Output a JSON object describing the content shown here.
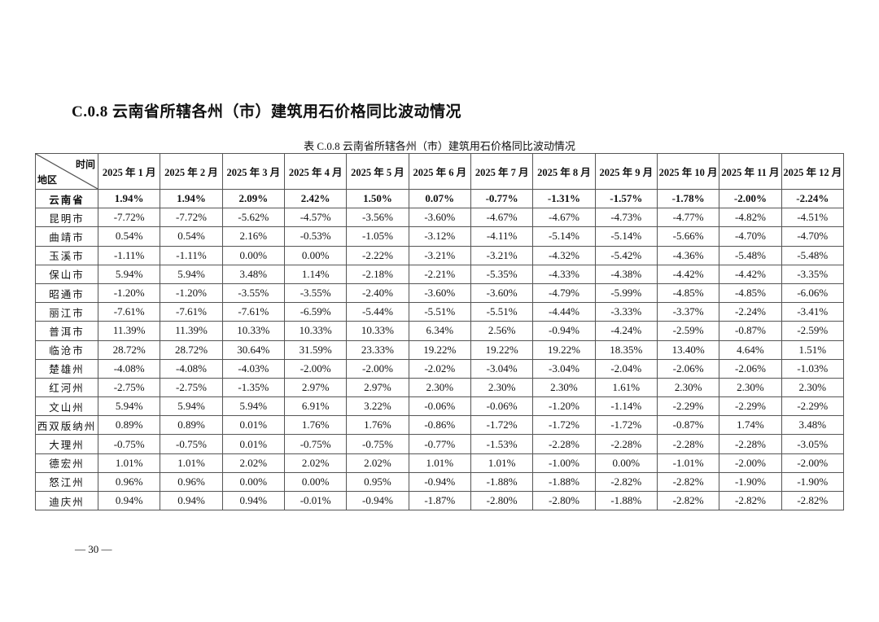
{
  "section_title": "C.0.8  云南省所辖各州（市）建筑用石价格同比波动情况",
  "caption": "表 C.0.8   云南省所辖各州（市）建筑用石价格同比波动情况",
  "table": {
    "corner_top": "时间",
    "corner_bottom": "地区",
    "columns": [
      "2025 年 1 月",
      "2025 年 2 月",
      "2025 年 3 月",
      "2025 年 4 月",
      "2025 年 5 月",
      "2025 年 6 月",
      "2025 年 7 月",
      "2025 年 8 月",
      "2025 年 9 月",
      "2025 年 10 月",
      "2025 年 11 月",
      "2025 年 12 月"
    ],
    "rows": [
      {
        "region": "云南省",
        "bold": true,
        "values": [
          "1.94%",
          "1.94%",
          "2.09%",
          "2.42%",
          "1.50%",
          "0.07%",
          "-0.77%",
          "-1.31%",
          "-1.57%",
          "-1.78%",
          "-2.00%",
          "-2.24%"
        ]
      },
      {
        "region": "昆明市",
        "values": [
          "-7.72%",
          "-7.72%",
          "-5.62%",
          "-4.57%",
          "-3.56%",
          "-3.60%",
          "-4.67%",
          "-4.67%",
          "-4.73%",
          "-4.77%",
          "-4.82%",
          "-4.51%"
        ]
      },
      {
        "region": "曲靖市",
        "values": [
          "0.54%",
          "0.54%",
          "2.16%",
          "-0.53%",
          "-1.05%",
          "-3.12%",
          "-4.11%",
          "-5.14%",
          "-5.14%",
          "-5.66%",
          "-4.70%",
          "-4.70%"
        ]
      },
      {
        "region": "玉溪市",
        "values": [
          "-1.11%",
          "-1.11%",
          "0.00%",
          "0.00%",
          "-2.22%",
          "-3.21%",
          "-3.21%",
          "-4.32%",
          "-5.42%",
          "-4.36%",
          "-5.48%",
          "-5.48%"
        ]
      },
      {
        "region": "保山市",
        "values": [
          "5.94%",
          "5.94%",
          "3.48%",
          "1.14%",
          "-2.18%",
          "-2.21%",
          "-5.35%",
          "-4.33%",
          "-4.38%",
          "-4.42%",
          "-4.42%",
          "-3.35%"
        ]
      },
      {
        "region": "昭通市",
        "values": [
          "-1.20%",
          "-1.20%",
          "-3.55%",
          "-3.55%",
          "-2.40%",
          "-3.60%",
          "-3.60%",
          "-4.79%",
          "-5.99%",
          "-4.85%",
          "-4.85%",
          "-6.06%"
        ]
      },
      {
        "region": "丽江市",
        "values": [
          "-7.61%",
          "-7.61%",
          "-7.61%",
          "-6.59%",
          "-5.44%",
          "-5.51%",
          "-5.51%",
          "-4.44%",
          "-3.33%",
          "-3.37%",
          "-2.24%",
          "-3.41%"
        ]
      },
      {
        "region": "普洱市",
        "values": [
          "11.39%",
          "11.39%",
          "10.33%",
          "10.33%",
          "10.33%",
          "6.34%",
          "2.56%",
          "-0.94%",
          "-4.24%",
          "-2.59%",
          "-0.87%",
          "-2.59%"
        ]
      },
      {
        "region": "临沧市",
        "values": [
          "28.72%",
          "28.72%",
          "30.64%",
          "31.59%",
          "23.33%",
          "19.22%",
          "19.22%",
          "19.22%",
          "18.35%",
          "13.40%",
          "4.64%",
          "1.51%"
        ]
      },
      {
        "region": "楚雄州",
        "values": [
          "-4.08%",
          "-4.08%",
          "-4.03%",
          "-2.00%",
          "-2.00%",
          "-2.02%",
          "-3.04%",
          "-3.04%",
          "-2.04%",
          "-2.06%",
          "-2.06%",
          "-1.03%"
        ]
      },
      {
        "region": "红河州",
        "values": [
          "-2.75%",
          "-2.75%",
          "-1.35%",
          "2.97%",
          "2.97%",
          "2.30%",
          "2.30%",
          "2.30%",
          "1.61%",
          "2.30%",
          "2.30%",
          "2.30%"
        ]
      },
      {
        "region": "文山州",
        "values": [
          "5.94%",
          "5.94%",
          "5.94%",
          "6.91%",
          "3.22%",
          "-0.06%",
          "-0.06%",
          "-1.20%",
          "-1.14%",
          "-2.29%",
          "-2.29%",
          "-2.29%"
        ]
      },
      {
        "region": "西双版纳州",
        "values": [
          "0.89%",
          "0.89%",
          "0.01%",
          "1.76%",
          "1.76%",
          "-0.86%",
          "-1.72%",
          "-1.72%",
          "-1.72%",
          "-0.87%",
          "1.74%",
          "3.48%"
        ]
      },
      {
        "region": "大理州",
        "values": [
          "-0.75%",
          "-0.75%",
          "0.01%",
          "-0.75%",
          "-0.75%",
          "-0.77%",
          "-1.53%",
          "-2.28%",
          "-2.28%",
          "-2.28%",
          "-2.28%",
          "-3.05%"
        ]
      },
      {
        "region": "德宏州",
        "values": [
          "1.01%",
          "1.01%",
          "2.02%",
          "2.02%",
          "2.02%",
          "1.01%",
          "1.01%",
          "-1.00%",
          "0.00%",
          "-1.01%",
          "-2.00%",
          "-2.00%"
        ]
      },
      {
        "region": "怒江州",
        "values": [
          "0.96%",
          "0.96%",
          "0.00%",
          "0.00%",
          "0.95%",
          "-0.94%",
          "-1.88%",
          "-1.88%",
          "-2.82%",
          "-2.82%",
          "-1.90%",
          "-1.90%"
        ]
      },
      {
        "region": "迪庆州",
        "values": [
          "0.94%",
          "0.94%",
          "0.94%",
          "-0.01%",
          "-0.94%",
          "-1.87%",
          "-2.80%",
          "-2.80%",
          "-1.88%",
          "-2.82%",
          "-2.82%",
          "-2.82%"
        ]
      }
    ]
  },
  "page_number": "— 30 —"
}
